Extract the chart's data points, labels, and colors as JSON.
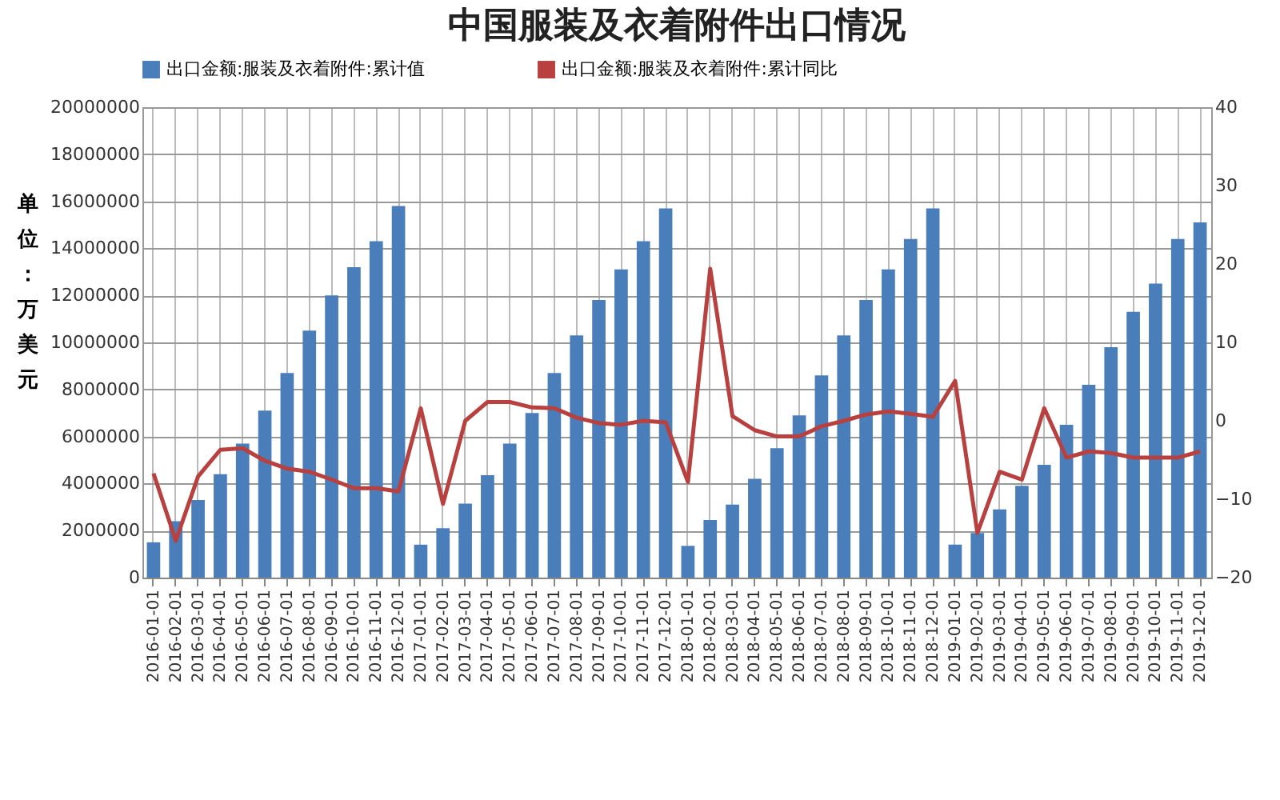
{
  "chart_data": {
    "type": "bar",
    "title": "中国服装及衣着附件出口情况",
    "ylabel": "单位：万美元",
    "categories": [
      "2016-01-01",
      "2016-02-01",
      "2016-03-01",
      "2016-04-01",
      "2016-05-01",
      "2016-06-01",
      "2016-07-01",
      "2016-08-01",
      "2016-09-01",
      "2016-10-01",
      "2016-11-01",
      "2016-12-01",
      "2017-01-01",
      "2017-02-01",
      "2017-03-01",
      "2017-04-01",
      "2017-05-01",
      "2017-06-01",
      "2017-07-01",
      "2017-08-01",
      "2017-09-01",
      "2017-10-01",
      "2017-11-01",
      "2017-12-01",
      "2018-01-01",
      "2018-02-01",
      "2018-03-01",
      "2018-04-01",
      "2018-05-01",
      "2018-06-01",
      "2018-07-01",
      "2018-08-01",
      "2018-09-01",
      "2018-10-01",
      "2018-11-01",
      "2018-12-01",
      "2019-01-01",
      "2019-02-01",
      "2019-03-01",
      "2019-04-01",
      "2019-05-01",
      "2019-06-01",
      "2019-07-01",
      "2019-08-01",
      "2019-09-01",
      "2019-10-01",
      "2019-11-01",
      "2019-12-01"
    ],
    "series": [
      {
        "name": "出口金额:服装及衣着附件:累计值",
        "color": "#4a7ebb",
        "values": [
          1500000,
          2400000,
          3300000,
          4400000,
          5700000,
          7100000,
          8700000,
          10500000,
          12000000,
          13200000,
          14300000,
          15800000,
          1400000,
          2100000,
          3150000,
          4350000,
          5700000,
          7000000,
          8700000,
          10300000,
          11800000,
          13100000,
          14300000,
          15700000,
          1350000,
          2450000,
          3100000,
          4200000,
          5500000,
          6900000,
          8600000,
          10300000,
          11800000,
          13100000,
          14400000,
          15700000,
          1400000,
          1900000,
          2900000,
          3900000,
          4800000,
          6500000,
          8200000,
          9800000,
          11300000,
          12500000,
          14400000,
          15100000
        ]
      },
      {
        "name": "出口金额:服装及衣着附件:累计同比",
        "type": "line",
        "axis": "y2",
        "color": "#b8403f",
        "values": [
          -6.7,
          -15.3,
          -7.1,
          -3.7,
          -3.5,
          -5.1,
          -6.1,
          -6.5,
          -7.5,
          -8.6,
          -8.6,
          -9.0,
          1.6,
          -10.6,
          0,
          2.4,
          2.4,
          1.7,
          1.6,
          0.4,
          -0.3,
          -0.5,
          0,
          -0.2,
          -7.8,
          19.4,
          0.6,
          -1.2,
          -2.0,
          -2.0,
          -0.7,
          0,
          0.8,
          1.2,
          0.9,
          0.5,
          5.1,
          -14.3,
          -6.5,
          -7.5,
          1.6,
          -4.7,
          -3.9,
          -4.1,
          -4.7,
          -4.7,
          -4.7,
          -3.9
        ]
      }
    ],
    "ylim": [
      0,
      20000000
    ],
    "yticks": [
      0,
      2000000,
      4000000,
      6000000,
      8000000,
      10000000,
      12000000,
      14000000,
      16000000,
      18000000,
      20000000
    ],
    "y2lim": [
      -20,
      40
    ],
    "y2ticks": [
      -20,
      -10,
      0,
      10,
      20,
      30,
      40
    ],
    "grid": true,
    "legend": "top"
  }
}
